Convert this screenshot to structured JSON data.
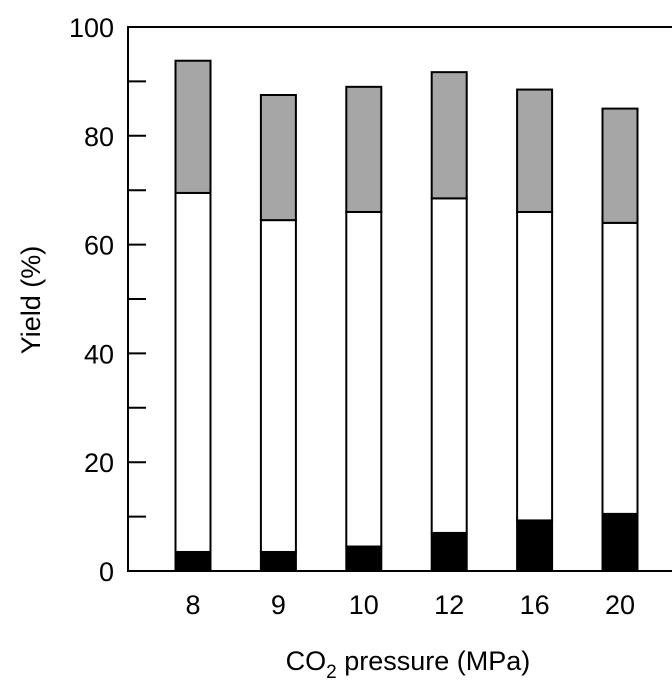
{
  "chart_data": {
    "type": "bar",
    "stacked": true,
    "categories": [
      "8",
      "9",
      "10",
      "12",
      "16",
      "20"
    ],
    "series": [
      {
        "values": [
          3.5,
          3.5,
          4.5,
          7,
          9.3,
          10.5
        ],
        "color": "#000000"
      },
      {
        "values": [
          66,
          61,
          61.5,
          61.5,
          56.7,
          53.5
        ],
        "color": "#ffffff"
      },
      {
        "values": [
          24.3,
          23,
          23,
          23.2,
          22.5,
          21
        ],
        "color": "#a6a6a6"
      }
    ],
    "xlabel": {
      "main": "CO",
      "sub": "2",
      "rest": " pressure (MPa)"
    },
    "ylabel": "Yield (%)",
    "ylim": [
      0,
      100
    ],
    "yticks": [
      "0",
      "20",
      "40",
      "60",
      "80",
      "100"
    ],
    "ytick_values": [
      0,
      20,
      40,
      60,
      80,
      100
    ],
    "minor_yticks": [
      10,
      30,
      50,
      70,
      90
    ],
    "grid": false,
    "legend": "none"
  }
}
